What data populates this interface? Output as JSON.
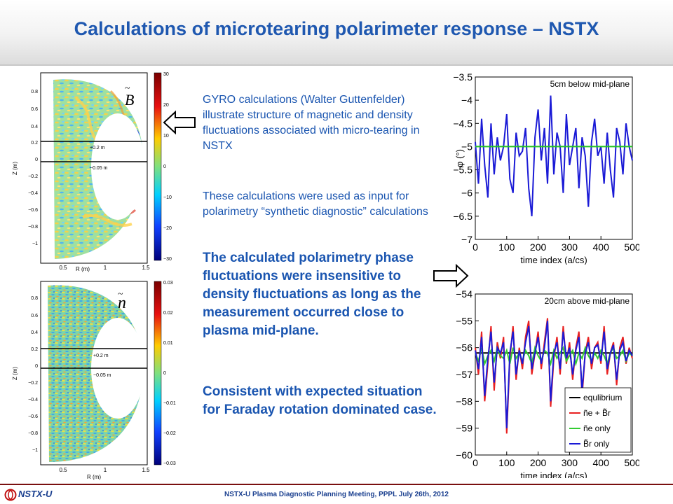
{
  "slide": {
    "title": "Calculations of microtearing polarimeter response – NSTX",
    "paragraphs": [
      "GYRO calculations (Walter Guttenfelder)  illustrate structure of magnetic and density fluctuations associated with micro-tearing in NSTX",
      "These calculations were used as input for polarimetry “synthetic diagnostic” calculations",
      "The calculated polarimetry phase fluctuations were insensitive to density fluctuations as long as the measurement occurred close to plasma mid-plane.",
      "Consistent with expected situation for Faraday rotation dominated case."
    ],
    "footer": "NSTX-U Plasma Diagnostic Planning Meeting, PPPL July 26th, 2012",
    "logo": "NSTX-U"
  },
  "contour_top": {
    "symbol": "B",
    "xlabel": "R (m)",
    "ylabel": "Z (m)",
    "xticks": [
      "0.5",
      "1",
      "1.5"
    ],
    "yticks": [
      "0.8",
      "0.6",
      "0.4",
      "0.2",
      "0",
      "−0.2",
      "−0.4",
      "−0.6",
      "−0.8",
      "−1"
    ],
    "colorbar_ticks": [
      "30",
      "20",
      "10",
      "0",
      "−10",
      "−20",
      "−30"
    ],
    "line_labels": [
      "+0.2 m",
      "−0.05 m"
    ]
  },
  "contour_bottom": {
    "symbol": "n",
    "xlabel": "R (m)",
    "ylabel": "Z (m)",
    "xticks": [
      "0.5",
      "1",
      "1.5"
    ],
    "yticks": [
      "0.8",
      "0.6",
      "0.4",
      "0.2",
      "0",
      "−0.2",
      "−0.4",
      "−0.6",
      "−0.8",
      "−1"
    ],
    "colorbar_ticks": [
      "0.03",
      "0.02",
      "0.01",
      "0",
      "−0.01",
      "−0.02",
      "−0.03"
    ],
    "line_labels": [
      "+0.2 m",
      "−0.05 m"
    ]
  },
  "chart_data": [
    {
      "type": "line",
      "title": "5cm below mid-plane",
      "xlabel": "time index (a/c_s)",
      "ylabel": "φ (°)",
      "xlim": [
        0,
        500
      ],
      "ylim": [
        -7,
        -3.5
      ],
      "xticks": [
        0,
        100,
        200,
        300,
        400,
        500
      ],
      "yticks": [
        -3.5,
        -4,
        -4.5,
        -5,
        -5.5,
        -6,
        -6.5,
        -7
      ],
      "x": [
        0,
        10,
        20,
        30,
        40,
        50,
        60,
        70,
        80,
        90,
        100,
        110,
        120,
        130,
        140,
        150,
        160,
        170,
        180,
        190,
        200,
        210,
        220,
        230,
        240,
        250,
        260,
        270,
        280,
        290,
        300,
        310,
        320,
        330,
        340,
        350,
        360,
        370,
        380,
        390,
        400,
        410,
        420,
        430,
        440,
        450,
        460,
        470,
        480,
        490,
        500
      ],
      "series": [
        {
          "name": "",
          "color": "#1a1ad6",
          "values": [
            -4.9,
            -5.8,
            -4.4,
            -5.4,
            -6.1,
            -4.5,
            -5.6,
            -4.8,
            -5.3,
            -5.0,
            -4.3,
            -5.7,
            -6.0,
            -4.7,
            -5.2,
            -5.1,
            -4.6,
            -5.9,
            -6.5,
            -4.8,
            -4.2,
            -5.3,
            -4.6,
            -5.8,
            -3.9,
            -5.6,
            -4.7,
            -5.0,
            -6.0,
            -4.3,
            -5.4,
            -5.0,
            -4.6,
            -5.9,
            -4.8,
            -5.2,
            -6.3,
            -4.9,
            -4.4,
            -5.2,
            -5.0,
            -5.8,
            -4.7,
            -5.5,
            -6.1,
            -4.6,
            -4.9,
            -5.6,
            -4.5,
            -5.0,
            -5.3
          ]
        },
        {
          "name": "",
          "color": "#22c422",
          "values": [
            -5.0,
            -5.0,
            -5.0,
            -5.0,
            -5.0,
            -5.0,
            -5.0,
            -5.0,
            -5.0,
            -5.0,
            -5.0,
            -5.0,
            -5.0,
            -5.0,
            -5.0,
            -5.0,
            -5.0,
            -5.0,
            -5.0,
            -5.0,
            -5.0,
            -5.0,
            -5.0,
            -5.0,
            -5.0,
            -5.0,
            -5.0,
            -5.0,
            -5.0,
            -5.0,
            -5.0,
            -5.0,
            -5.0,
            -5.0,
            -5.0,
            -5.0,
            -5.0,
            -5.0,
            -5.0,
            -5.0,
            -5.0,
            -5.0,
            -5.0,
            -5.0,
            -5.0,
            -5.0,
            -5.0,
            -5.0,
            -5.0,
            -5.0,
            -5.0
          ]
        }
      ]
    },
    {
      "type": "line",
      "title": "20cm above mid-plane",
      "xlabel": "time index (a/c_s)",
      "ylabel": "",
      "xlim": [
        0,
        500
      ],
      "ylim": [
        -60,
        -54
      ],
      "xticks": [
        0,
        100,
        200,
        300,
        400,
        500
      ],
      "yticks": [
        -54,
        -55,
        -56,
        -57,
        -58,
        -59,
        -60
      ],
      "x": [
        0,
        10,
        20,
        30,
        40,
        50,
        60,
        70,
        80,
        90,
        100,
        110,
        120,
        130,
        140,
        150,
        160,
        170,
        180,
        190,
        200,
        210,
        220,
        230,
        240,
        250,
        260,
        270,
        280,
        290,
        300,
        310,
        320,
        330,
        340,
        350,
        360,
        370,
        380,
        390,
        400,
        410,
        420,
        430,
        440,
        450,
        460,
        470,
        480,
        490,
        500
      ],
      "legend": {
        "location": "lower-right"
      },
      "series": [
        {
          "name": "equlibrium",
          "color": "#000000",
          "values": [
            -56.2,
            -56.2,
            -56.2,
            -56.2,
            -56.2,
            -56.2,
            -56.2,
            -56.2,
            -56.2,
            -56.2,
            -56.2,
            -56.2,
            -56.2,
            -56.2,
            -56.2,
            -56.2,
            -56.2,
            -56.2,
            -56.2,
            -56.2,
            -56.2,
            -56.2,
            -56.2,
            -56.2,
            -56.2,
            -56.2,
            -56.2,
            -56.2,
            -56.2,
            -56.2,
            -56.2,
            -56.2,
            -56.2,
            -56.2,
            -56.2,
            -56.2,
            -56.2,
            -56.2,
            -56.2,
            -56.2,
            -56.2,
            -56.2,
            -56.2,
            -56.2,
            -56.2,
            -56.2,
            -56.2,
            -56.2,
            -56.2,
            -56.2,
            -56.2
          ]
        },
        {
          "name": "ñe + B̃r",
          "color": "#e82020",
          "values": [
            -56.0,
            -57.0,
            -55.4,
            -58.0,
            -56.6,
            -55.2,
            -57.6,
            -55.8,
            -56.4,
            -55.6,
            -59.2,
            -56.4,
            -55.2,
            -57.2,
            -56.0,
            -56.8,
            -55.6,
            -55.0,
            -57.0,
            -56.2,
            -55.4,
            -56.8,
            -55.8,
            -54.9,
            -58.2,
            -56.4,
            -55.6,
            -57.0,
            -55.2,
            -56.6,
            -55.8,
            -57.2,
            -56.0,
            -55.4,
            -57.8,
            -56.2,
            -55.6,
            -56.8,
            -56.0,
            -55.8,
            -56.6,
            -55.2,
            -57.0,
            -56.2,
            -55.8,
            -57.4,
            -56.0,
            -55.6,
            -56.6,
            -56.0,
            -56.4
          ]
        },
        {
          "name": "ñe only",
          "color": "#33cc33",
          "values": [
            -56.2,
            -56.5,
            -56.0,
            -56.6,
            -56.3,
            -56.1,
            -56.5,
            -56.0,
            -56.3,
            -56.4,
            -56.1,
            -56.6,
            -56.0,
            -56.4,
            -56.2,
            -56.5,
            -56.1,
            -56.3,
            -56.6,
            -56.0,
            -56.3,
            -56.5,
            -56.1,
            -56.2,
            -56.6,
            -56.1,
            -56.4,
            -56.2,
            -56.0,
            -56.5,
            -56.3,
            -56.1,
            -56.6,
            -56.2,
            -56.4,
            -56.0,
            -56.3,
            -56.5,
            -56.2,
            -56.4,
            -56.1,
            -56.3,
            -56.6,
            -56.2,
            -56.0,
            -56.4,
            -56.3,
            -56.1,
            -56.5,
            -56.2,
            -56.3
          ]
        },
        {
          "name": "B̃r only",
          "color": "#1a1ad6",
          "values": [
            -56.1,
            -56.8,
            -55.6,
            -57.8,
            -56.4,
            -55.4,
            -57.3,
            -56.0,
            -56.2,
            -55.8,
            -59.0,
            -56.2,
            -55.4,
            -57.0,
            -56.1,
            -56.6,
            -55.8,
            -55.2,
            -56.8,
            -56.2,
            -55.6,
            -56.6,
            -56.0,
            -55.0,
            -58.0,
            -56.2,
            -55.8,
            -56.8,
            -55.4,
            -56.4,
            -56.0,
            -57.0,
            -56.1,
            -55.6,
            -57.6,
            -56.2,
            -55.8,
            -56.6,
            -56.0,
            -55.9,
            -56.5,
            -55.4,
            -56.8,
            -56.2,
            -55.9,
            -57.2,
            -56.1,
            -55.8,
            -56.5,
            -56.1,
            -56.3
          ]
        }
      ]
    }
  ]
}
